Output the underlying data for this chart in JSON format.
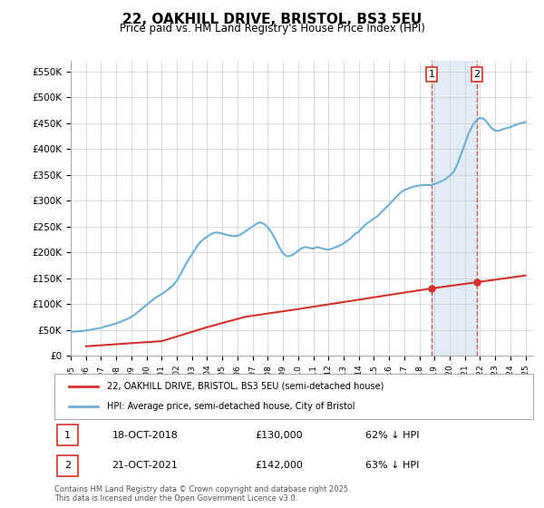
{
  "title": "22, OAKHILL DRIVE, BRISTOL, BS3 5EU",
  "subtitle": "Price paid vs. HM Land Registry's House Price Index (HPI)",
  "ylabel_ticks": [
    "£0",
    "£50K",
    "£100K",
    "£150K",
    "£200K",
    "£250K",
    "£300K",
    "£350K",
    "£400K",
    "£450K",
    "£500K",
    "£550K"
  ],
  "ytick_values": [
    0,
    50000,
    100000,
    150000,
    200000,
    250000,
    300000,
    350000,
    400000,
    450000,
    500000,
    550000
  ],
  "xmin": 1995.0,
  "xmax": 2025.5,
  "ymin": 0,
  "ymax": 570000,
  "hpi_color": "#6baed6",
  "price_color": "#d73027",
  "vline_color": "#d73027",
  "vline_alpha": 0.5,
  "shading_color": "#c6dbef",
  "shading_alpha": 0.3,
  "marker1_date": 2018.8,
  "marker2_date": 2021.8,
  "marker1_price": 130000,
  "marker2_price": 142000,
  "legend_label1": "22, OAKHILL DRIVE, BRISTOL, BS3 5EU (semi-detached house)",
  "legend_label2": "HPI: Average price, semi-detached house, City of Bristol",
  "annotation1_label": "1",
  "annotation2_label": "2",
  "annotation1_date": "18-OCT-2018",
  "annotation1_price": "£130,000",
  "annotation1_hpi": "62% ↓ HPI",
  "annotation2_date": "21-OCT-2021",
  "annotation2_price": "£142,000",
  "annotation2_hpi": "63% ↓ HPI",
  "footer": "Contains HM Land Registry data © Crown copyright and database right 2025.\nThis data is licensed under the Open Government Licence v3.0.",
  "bg_color": "#ffffff",
  "grid_color": "#cccccc",
  "hpi_data_x": [
    1995.0,
    1995.25,
    1995.5,
    1995.75,
    1996.0,
    1996.25,
    1996.5,
    1996.75,
    1997.0,
    1997.25,
    1997.5,
    1997.75,
    1998.0,
    1998.25,
    1998.5,
    1998.75,
    1999.0,
    1999.25,
    1999.5,
    1999.75,
    2000.0,
    2000.25,
    2000.5,
    2000.75,
    2001.0,
    2001.25,
    2001.5,
    2001.75,
    2002.0,
    2002.25,
    2002.5,
    2002.75,
    2003.0,
    2003.25,
    2003.5,
    2003.75,
    2004.0,
    2004.25,
    2004.5,
    2004.75,
    2005.0,
    2005.25,
    2005.5,
    2005.75,
    2006.0,
    2006.25,
    2006.5,
    2006.75,
    2007.0,
    2007.25,
    2007.5,
    2007.75,
    2008.0,
    2008.25,
    2008.5,
    2008.75,
    2009.0,
    2009.25,
    2009.5,
    2009.75,
    2010.0,
    2010.25,
    2010.5,
    2010.75,
    2011.0,
    2011.25,
    2011.5,
    2011.75,
    2012.0,
    2012.25,
    2012.5,
    2012.75,
    2013.0,
    2013.25,
    2013.5,
    2013.75,
    2014.0,
    2014.25,
    2014.5,
    2014.75,
    2015.0,
    2015.25,
    2015.5,
    2015.75,
    2016.0,
    2016.25,
    2016.5,
    2016.75,
    2017.0,
    2017.25,
    2017.5,
    2017.75,
    2018.0,
    2018.25,
    2018.5,
    2018.75,
    2019.0,
    2019.25,
    2019.5,
    2019.75,
    2020.0,
    2020.25,
    2020.5,
    2020.75,
    2021.0,
    2021.25,
    2021.5,
    2021.75,
    2022.0,
    2022.25,
    2022.5,
    2022.75,
    2023.0,
    2023.25,
    2023.5,
    2023.75,
    2024.0,
    2024.25,
    2024.5,
    2024.75,
    2025.0
  ],
  "hpi_data_y": [
    46000,
    46500,
    47000,
    47500,
    48500,
    49500,
    51000,
    52500,
    54000,
    56000,
    58000,
    60000,
    62000,
    65000,
    68000,
    71000,
    75000,
    80000,
    86000,
    92000,
    98000,
    104000,
    110000,
    115000,
    119000,
    124000,
    130000,
    136000,
    145000,
    158000,
    172000,
    185000,
    196000,
    208000,
    218000,
    225000,
    230000,
    235000,
    238000,
    238000,
    236000,
    234000,
    232000,
    231000,
    232000,
    235000,
    240000,
    245000,
    250000,
    255000,
    258000,
    255000,
    248000,
    238000,
    225000,
    210000,
    198000,
    192000,
    193000,
    197000,
    203000,
    208000,
    210000,
    208000,
    207000,
    210000,
    208000,
    206000,
    205000,
    207000,
    210000,
    213000,
    217000,
    222000,
    228000,
    235000,
    240000,
    248000,
    255000,
    260000,
    265000,
    270000,
    278000,
    285000,
    292000,
    300000,
    308000,
    315000,
    320000,
    323000,
    326000,
    328000,
    329000,
    330000,
    330000,
    330000,
    332000,
    335000,
    338000,
    342000,
    348000,
    355000,
    370000,
    390000,
    410000,
    430000,
    445000,
    455000,
    460000,
    458000,
    450000,
    440000,
    435000,
    435000,
    438000,
    440000,
    442000,
    445000,
    448000,
    450000,
    452000
  ],
  "price_data_x": [
    1996.0,
    1997.0,
    1998.0,
    1999.0,
    2001.0,
    2004.0,
    2006.5,
    2010.0,
    2018.8,
    2021.8,
    2025.0
  ],
  "price_data_y": [
    18000,
    20000,
    22000,
    24000,
    28000,
    55000,
    75000,
    90000,
    130000,
    142000,
    155000
  ]
}
